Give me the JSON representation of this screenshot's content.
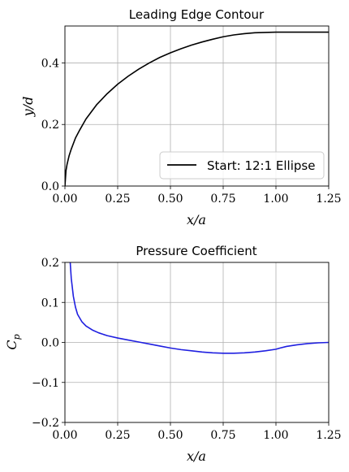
{
  "chart_data": [
    {
      "type": "line",
      "title": "Leading Edge Contour",
      "xlabel": "x/a",
      "ylabel": "y/d",
      "xlim": [
        0,
        1.25
      ],
      "ylim": [
        0,
        0.52
      ],
      "xticks": [
        0,
        0.25,
        0.5,
        0.75,
        1.0,
        1.25
      ],
      "xtick_labels": [
        "0.00",
        "0.25",
        "0.50",
        "0.75",
        "1.00",
        "1.25"
      ],
      "yticks": [
        0,
        0.2,
        0.4
      ],
      "ytick_labels": [
        "0.0",
        "0.2",
        "0.4"
      ],
      "grid": true,
      "legend_position": "lower-right",
      "series": [
        {
          "name": "Start: 12:1 Ellipse",
          "color": "#000000",
          "x": [
            0,
            0.005,
            0.01,
            0.02,
            0.03,
            0.05,
            0.07,
            0.1,
            0.15,
            0.2,
            0.25,
            0.3,
            0.35,
            0.4,
            0.45,
            0.5,
            0.55,
            0.6,
            0.65,
            0.7,
            0.75,
            0.8,
            0.85,
            0.9,
            0.95,
            1.0,
            1.05,
            1.1,
            1.15,
            1.2,
            1.25
          ],
          "y": [
            0,
            0.05,
            0.07,
            0.099,
            0.12,
            0.156,
            0.182,
            0.218,
            0.264,
            0.3,
            0.331,
            0.357,
            0.38,
            0.4,
            0.418,
            0.433,
            0.446,
            0.458,
            0.468,
            0.477,
            0.485,
            0.491,
            0.495,
            0.498,
            0.499,
            0.5,
            0.5,
            0.5,
            0.5,
            0.5,
            0.5
          ]
        }
      ]
    },
    {
      "type": "line",
      "title": "Pressure Coefficient",
      "xlabel": "x/a",
      "ylabel": "C_p",
      "xlim": [
        0,
        1.25
      ],
      "ylim": [
        -0.2,
        0.2
      ],
      "xticks": [
        0,
        0.25,
        0.5,
        0.75,
        1.0,
        1.25
      ],
      "xtick_labels": [
        "0.00",
        "0.25",
        "0.50",
        "0.75",
        "1.00",
        "1.25"
      ],
      "yticks": [
        -0.2,
        -0.1,
        0,
        0.1,
        0.2
      ],
      "ytick_labels": [
        "−0.2",
        "−0.1",
        "0.0",
        "0.1",
        "0.2"
      ],
      "grid": true,
      "series": [
        {
          "color": "#1f1fe0",
          "x": [
            0.025,
            0.03,
            0.04,
            0.05,
            0.06,
            0.08,
            0.1,
            0.13,
            0.16,
            0.2,
            0.25,
            0.3,
            0.35,
            0.4,
            0.45,
            0.5,
            0.55,
            0.6,
            0.65,
            0.7,
            0.75,
            0.8,
            0.85,
            0.9,
            0.95,
            1.0,
            1.02,
            1.05,
            1.1,
            1.15,
            1.2,
            1.25
          ],
          "y": [
            0.2,
            0.16,
            0.115,
            0.088,
            0.07,
            0.052,
            0.041,
            0.031,
            0.024,
            0.017,
            0.011,
            0.006,
            0.001,
            -0.004,
            -0.009,
            -0.014,
            -0.018,
            -0.021,
            -0.024,
            -0.026,
            -0.027,
            -0.027,
            -0.026,
            -0.024,
            -0.021,
            -0.017,
            -0.014,
            -0.01,
            -0.006,
            -0.003,
            -0.001,
            0.0
          ]
        }
      ]
    }
  ]
}
